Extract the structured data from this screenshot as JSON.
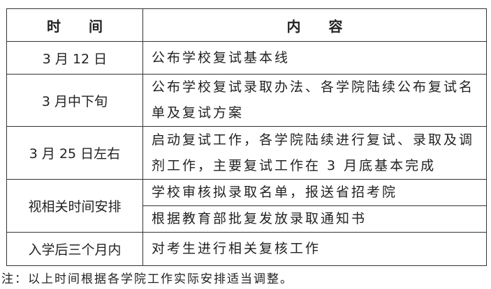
{
  "table": {
    "headers": {
      "time": "时　　间",
      "content": "内　　容"
    },
    "rows": [
      {
        "time": "3 月 12 日",
        "content": [
          "公布学校复试基本线"
        ]
      },
      {
        "time": "3 月中下旬",
        "content": [
          "公布学校复试录取办法、各学院陆续公布复试名单及复试方案"
        ]
      },
      {
        "time": "3 月 25 日左右",
        "content": [
          "启动复试工作，各学院陆续进行复试、录取及调剂工作，主要复试工作在 3 月底基本完成"
        ]
      },
      {
        "time": "视相关时间安排",
        "content": [
          "学校审核拟录取名单，报送省招考院",
          "根据教育部批复发放录取通知书"
        ]
      },
      {
        "time": "入学后三个月内",
        "content": [
          "对考生进行相关复核工作"
        ]
      }
    ]
  },
  "note": "注：以上时间根据各学院工作实际安排适当调整。"
}
